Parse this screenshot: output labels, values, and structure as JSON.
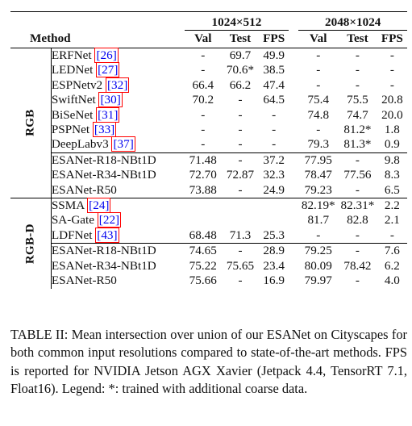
{
  "table": {
    "groups": [
      "1024×512",
      "2048×1024"
    ],
    "columns": {
      "method": "Method",
      "val": "Val",
      "test": "Test",
      "fps": "FPS"
    },
    "sections": [
      {
        "label": "RGB",
        "blocks": [
          [
            {
              "method": "ERFNet",
              "cite": "26",
              "v1": "-",
              "t1": "69.7",
              "f1": "49.9",
              "v2": "-",
              "t2": "-",
              "f2": "-"
            },
            {
              "method": "LEDNet",
              "cite": "27",
              "v1": "-",
              "t1": "70.6*",
              "f1": "38.5",
              "v2": "-",
              "t2": "-",
              "f2": "-"
            },
            {
              "method": "ESPNetv2",
              "cite": "32",
              "v1": "66.4",
              "t1": "66.2",
              "f1": "47.4",
              "v2": "-",
              "t2": "-",
              "f2": "-"
            },
            {
              "method": "SwiftNet",
              "cite": "30",
              "v1": "70.2",
              "t1": "-",
              "f1": "64.5",
              "v2": "75.4",
              "t2": "75.5",
              "f2": "20.8"
            },
            {
              "method": "BiSeNet",
              "cite": "31",
              "v1": "-",
              "t1": "-",
              "f1": "-",
              "v2": "74.8",
              "t2": "74.7",
              "f2": "20.0"
            },
            {
              "method": "PSPNet",
              "cite": "33",
              "v1": "-",
              "t1": "-",
              "f1": "-",
              "v2": "-",
              "t2": "81.2*",
              "f2": "1.8"
            },
            {
              "method": "DeepLabv3",
              "cite": "37",
              "v1": "-",
              "t1": "-",
              "f1": "-",
              "v2": "79.3",
              "t2": "81.3*",
              "f2": "0.9"
            }
          ],
          [
            {
              "method": "ESANet-R18-NBt1D",
              "cite": "",
              "v1": "71.48",
              "t1": "-",
              "f1": "37.2",
              "v2": "77.95",
              "t2": "-",
              "f2": "9.8"
            },
            {
              "method": "ESANet-R34-NBt1D",
              "cite": "",
              "v1": "72.70",
              "t1": "72.87",
              "f1": "32.3",
              "v2": "78.47",
              "t2": "77.56",
              "f2": "8.3"
            },
            {
              "method": "ESANet-R50",
              "cite": "",
              "v1": "73.88",
              "t1": "-",
              "f1": "24.9",
              "v2": "79.23",
              "t2": "-",
              "f2": "6.5"
            }
          ]
        ]
      },
      {
        "label": "RGB-D",
        "blocks": [
          [
            {
              "method": "SSMA",
              "cite": "24",
              "v1": "",
              "t1": "",
              "f1": "",
              "v2": "82.19*",
              "t2": "82.31*",
              "f2": "2.2"
            },
            {
              "method": "SA-Gate",
              "cite": "22",
              "v1": "",
              "t1": "",
              "f1": "",
              "v2": "81.7",
              "t2": "82.8",
              "f2": "2.1"
            },
            {
              "method": "LDFNet",
              "cite": "43",
              "v1": "68.48",
              "t1": "71.3",
              "f1": "25.3",
              "v2": "-",
              "t2": "-",
              "f2": "-"
            }
          ],
          [
            {
              "method": "ESANet-R18-NBt1D",
              "cite": "",
              "v1": "74.65",
              "t1": "-",
              "f1": "28.9",
              "v2": "79.25",
              "t2": "-",
              "f2": "7.6"
            },
            {
              "method": "ESANet-R34-NBt1D",
              "cite": "",
              "v1": "75.22",
              "t1": "75.65",
              "f1": "23.4",
              "v2": "80.09",
              "t2": "78.42",
              "f2": "6.2"
            },
            {
              "method": "ESANet-R50",
              "cite": "",
              "v1": "75.66",
              "t1": "-",
              "f1": "16.9",
              "v2": "79.97",
              "t2": "-",
              "f2": "4.0"
            }
          ]
        ]
      }
    ]
  },
  "caption": "TABLE II: Mean intersection over union of our ESANet on Cityscapes for both common input resolutions compared to state-of-the-art methods. FPS is reported for NVIDIA Jetson AGX Xavier (Jetpack 4.4, TensorRT 7.1, Float16). Legend: *: trained with additional coarse data."
}
